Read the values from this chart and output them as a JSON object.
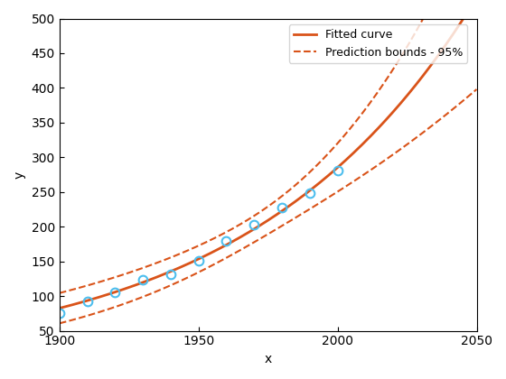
{
  "data_x": [
    1900,
    1910,
    1920,
    1930,
    1940,
    1950,
    1960,
    1970,
    1980,
    1990,
    2000
  ],
  "data_y": [
    76,
    92,
    106,
    123,
    132,
    151,
    179,
    203,
    227,
    249,
    281
  ],
  "xlim": [
    1900,
    2050
  ],
  "ylim": [
    50,
    500
  ],
  "xticks": [
    1900,
    1950,
    2000,
    2050
  ],
  "yticks": [
    50,
    100,
    150,
    200,
    250,
    300,
    350,
    400,
    450,
    500
  ],
  "xlabel": "x",
  "ylabel": "y",
  "fitted_color": "#D95319",
  "bounds_color": "#D95319",
  "data_color": "#4DBEEE",
  "legend_fitted": "Fitted curve",
  "legend_bounds": "Prediction bounds - 95%",
  "fit_x_start": 1900,
  "fit_x_end": 2050,
  "background_color": "#ffffff"
}
